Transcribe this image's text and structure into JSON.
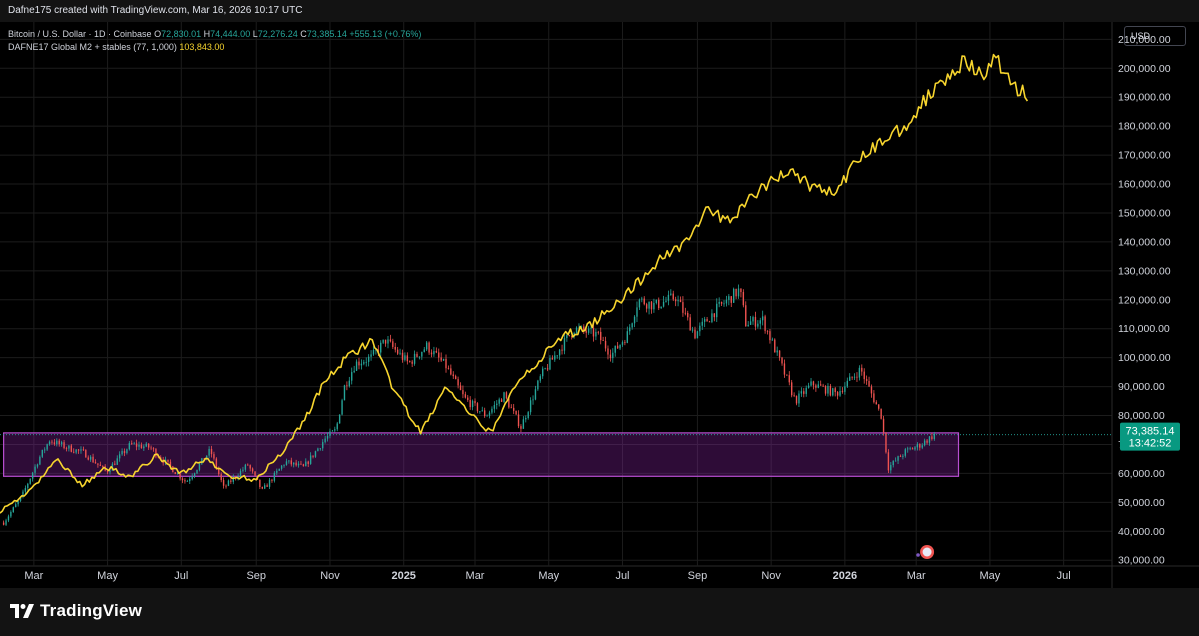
{
  "header": {
    "created_by": "Dafne175 created with TradingView.com, Mar 16, 2026 10:17 UTC"
  },
  "legend": {
    "symbol": "Bitcoin / U.S. Dollar · 1D · Coinbase",
    "o_label": "O",
    "o": "72,830.01",
    "h_label": "H",
    "h": "74,444.00",
    "l_label": "L",
    "l": "72,276.24",
    "c_label": "C",
    "c": "73,385.14",
    "change": "+555.13 (+0.76%)",
    "indicator": "DAFNE17 Global M2 + stables (77, 1,000)",
    "indicator_value": "103,843.00"
  },
  "currency_button": "USD",
  "price_label": {
    "price": "73,385.14",
    "countdown": "13:42:52"
  },
  "footer": {
    "brand": "TradingView"
  },
  "colors": {
    "up": "#26a69a",
    "down": "#ef5350",
    "m2": "#f7d52e",
    "zone": "#8e24aa",
    "bg": "#000000"
  },
  "chart_data": {
    "type": "line",
    "y_axis": {
      "ticks": [
        30000,
        40000,
        50000,
        60000,
        70000,
        80000,
        90000,
        100000,
        110000,
        120000,
        130000,
        140000,
        150000,
        160000,
        170000,
        180000,
        190000,
        200000,
        210000
      ],
      "tick_labels": [
        "30,000.00",
        "40,000.00",
        "50,000.00",
        "60,000.00",
        "70,000.00",
        "80,000.00",
        "90,000.00",
        "100,000.00",
        "110,000.00",
        "120,000.00",
        "130,000.00",
        "140,000.00",
        "150,000.00",
        "160,000.00",
        "170,000.00",
        "180,000.00",
        "190,000.00",
        "200,000.00",
        "210,000.00"
      ],
      "ylim": [
        28000,
        216000
      ]
    },
    "x_axis": {
      "labels": [
        "Mar",
        "May",
        "Jul",
        "Sep",
        "Nov",
        "2025",
        "Mar",
        "May",
        "Jul",
        "Sep",
        "Nov",
        "2026",
        "Mar",
        "May",
        "Jul"
      ],
      "label_dates": [
        "2024-03-01",
        "2024-05-01",
        "2024-07-01",
        "2024-09-01",
        "2024-11-01",
        "2025-01-01",
        "2025-03-01",
        "2025-05-01",
        "2025-07-01",
        "2025-09-01",
        "2025-11-01",
        "2026-01-01",
        "2026-03-01",
        "2026-05-01",
        "2026-07-01"
      ],
      "xlim": [
        "2024-02-02",
        "2026-08-10"
      ]
    },
    "series": [
      {
        "name": "Bitcoin / U.S. Dollar · 1D · Coinbase",
        "kind": "candles",
        "x": [
          "2024-02-05",
          "2024-02-20",
          "2024-03-05",
          "2024-03-14",
          "2024-03-28",
          "2024-04-12",
          "2024-04-30",
          "2024-05-20",
          "2024-06-05",
          "2024-06-20",
          "2024-07-05",
          "2024-07-25",
          "2024-08-05",
          "2024-08-25",
          "2024-09-06",
          "2024-09-25",
          "2024-10-10",
          "2024-10-28",
          "2024-11-06",
          "2024-11-13",
          "2024-11-22",
          "2024-12-05",
          "2024-12-17",
          "2025-01-05",
          "2025-01-20",
          "2025-02-05",
          "2025-02-20",
          "2025-03-10",
          "2025-03-25",
          "2025-04-08",
          "2025-04-25",
          "2025-05-10",
          "2025-05-22",
          "2025-06-10",
          "2025-06-22",
          "2025-07-05",
          "2025-07-14",
          "2025-07-28",
          "2025-08-14",
          "2025-08-30",
          "2025-09-15",
          "2025-10-06",
          "2025-10-11",
          "2025-10-25",
          "2025-11-06",
          "2025-11-21",
          "2025-12-05",
          "2025-12-25",
          "2026-01-14",
          "2026-01-31",
          "2026-02-06",
          "2026-02-20",
          "2026-03-05",
          "2026-03-16"
        ],
        "y": [
          43000,
          52000,
          65000,
          71500,
          69000,
          67000,
          60500,
          70000,
          69000,
          63000,
          57000,
          68000,
          55000,
          63000,
          54000,
          64000,
          62000,
          72000,
          75000,
          90000,
          98000,
          100000,
          106000,
          98000,
          104000,
          97000,
          86000,
          80000,
          87000,
          76000,
          94000,
          103000,
          110000,
          108000,
          101000,
          108000,
          120000,
          118000,
          121000,
          108000,
          116000,
          123500,
          112000,
          113000,
          101000,
          85000,
          91000,
          87500,
          96000,
          80000,
          62000,
          67500,
          70000,
          73385.14
        ]
      },
      {
        "name": "DAFNE17 Global M2 + stables (77, 1,000)",
        "kind": "line",
        "x": [
          "2024-02-02",
          "2024-02-20",
          "2024-03-05",
          "2024-03-20",
          "2024-04-10",
          "2024-05-01",
          "2024-05-20",
          "2024-06-10",
          "2024-07-01",
          "2024-07-20",
          "2024-08-10",
          "2024-08-31",
          "2024-09-20",
          "2024-10-10",
          "2024-10-28",
          "2024-11-15",
          "2024-12-05",
          "2024-12-25",
          "2025-01-15",
          "2025-02-05",
          "2025-02-25",
          "2025-03-15",
          "2025-04-05",
          "2025-04-25",
          "2025-05-15",
          "2025-06-01",
          "2025-06-20",
          "2025-07-10",
          "2025-08-01",
          "2025-08-21",
          "2025-09-10",
          "2025-09-25",
          "2025-10-10",
          "2025-10-30",
          "2025-11-15",
          "2025-12-05",
          "2025-12-25",
          "2026-01-15",
          "2026-02-05",
          "2026-02-25",
          "2026-03-15",
          "2026-04-01",
          "2026-04-10",
          "2026-04-25",
          "2026-05-05",
          "2026-05-15",
          "2026-06-01"
        ],
        "y": [
          47000,
          52000,
          57000,
          65000,
          56000,
          62000,
          59000,
          66000,
          60000,
          65000,
          59000,
          58000,
          66000,
          78000,
          92000,
          100000,
          106000,
          88000,
          74000,
          90000,
          80000,
          74000,
          92000,
          100000,
          108000,
          110000,
          117000,
          124000,
          134000,
          140000,
          151000,
          147000,
          153000,
          160000,
          165000,
          159000,
          157000,
          170000,
          176000,
          182000,
          193000,
          200000,
          202000,
          197000,
          204000,
          197000,
          190000
        ]
      }
    ],
    "annotation": {
      "kind": "zone",
      "y_from": 59000,
      "y_to": 74000,
      "x_from": "2024-02-05",
      "x_to": "2026-04-05"
    }
  }
}
